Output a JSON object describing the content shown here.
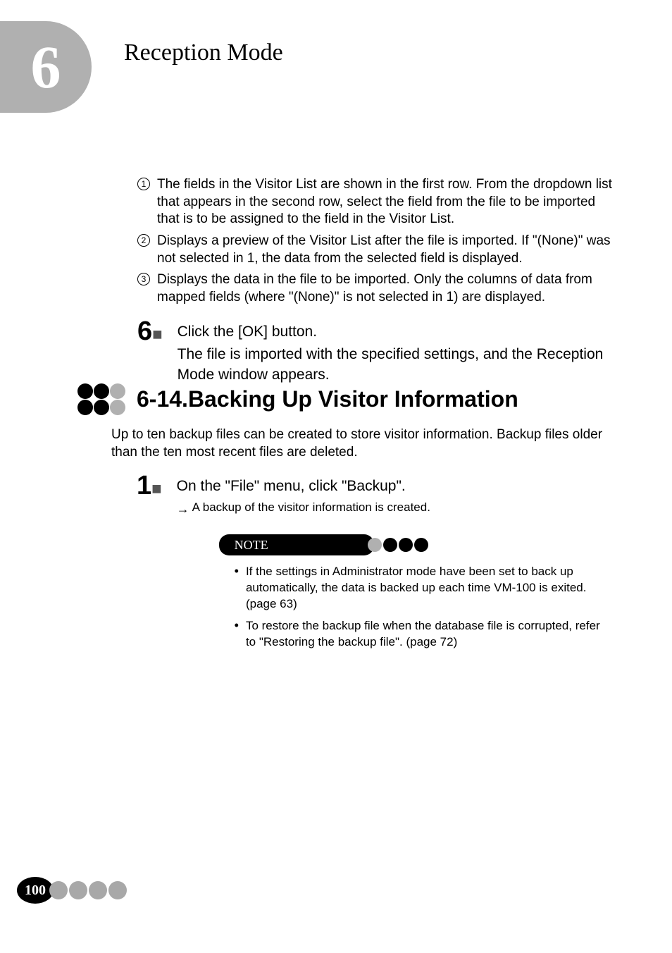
{
  "colors": {
    "gray": "#b0b0b0",
    "lightGray": "#a8a8a8",
    "black": "#000000",
    "white": "#ffffff",
    "text": "#000000"
  },
  "chapter": {
    "number": "6",
    "title": "Reception Mode"
  },
  "numberedList": [
    {
      "num": "1",
      "text": "The fields in the Visitor List are shown in the first row. From the dropdown list that appears in the second row, select the field from the file to be imported that is to be assigned to the field in the Visitor List."
    },
    {
      "num": "2",
      "text": "Displays a preview of the Visitor List after the file is imported. If \"(None)\" was not selected in 1, the data from the selected field is displayed."
    },
    {
      "num": "3",
      "text": "Displays the data in the file to be imported. Only the columns of data from mapped fields (where \"(None)\" is not selected in 1) are displayed."
    }
  ],
  "step6": {
    "number": "6",
    "line1": "Click the [OK] button.",
    "line2": "The file is imported with the specified settings, and the Reception Mode window appears."
  },
  "section": {
    "title": "6-14.Backing Up Visitor Information",
    "intro": "Up to ten backup files can be created to store visitor information. Backup files older than the ten most recent files are deleted."
  },
  "step1": {
    "number": "1",
    "line1": "On the \"File\" menu, click \"Backup\".",
    "arrowText": "A backup of the visitor information is created."
  },
  "note": {
    "label": "NOTE",
    "bullets": [
      "If the settings in Administrator mode have been set to back up automatically, the data is backed up each time VM-100 is exited. (page 63)",
      "To restore the backup file when the database file is corrupted, refer to \"Restoring the backup file\". (page 72)"
    ]
  },
  "footer": {
    "pageNumber": "100"
  }
}
